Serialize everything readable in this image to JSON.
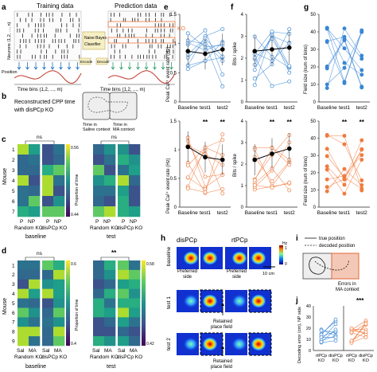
{
  "panels": {
    "a": {
      "letter": "a",
      "training_title": "Training data",
      "prediction_title": "Prediction data",
      "ylabel": "Neurons (1,2, ..., n)",
      "position_label": "Position",
      "xlabel_left": "Time bins (1,2, ..., m)",
      "xlabel_right": "Time bins (1,2, ..., m)",
      "classifier": "Naive Bayes Classifier",
      "encode": "Encode",
      "decode": "Decode",
      "ko": "KO"
    },
    "b": {
      "letter": "b",
      "title_line1": "Reconstructed CPP time",
      "title_line2": "with disPCp KO",
      "saline": "Time in Saline context",
      "ma": "Time in MA context"
    },
    "c": {
      "letter": "c",
      "ylabel": "Mouse",
      "mice": [
        "1",
        "2",
        "3",
        "4",
        "5",
        "6",
        "7"
      ],
      "ns_left": "ns",
      "ns_right": "ns",
      "xt1": "P",
      "xt2": "NP",
      "xt3": "P",
      "xt4": "NP",
      "group1": "Random KO",
      "group2": "disPCp KO",
      "cap_left": "baseline",
      "cap_right": "test",
      "colorbar_label": "Proportion of time",
      "cb_max": "0.56",
      "cb_min": "0.44"
    },
    "d": {
      "letter": "d",
      "ylabel": "Mouse",
      "mice": [
        "1",
        "2",
        "3",
        "4",
        "5",
        "6",
        "7",
        "8",
        "9"
      ],
      "ns_left": "ns",
      "sig_right": "**",
      "xt1": "Sal",
      "xt2": "MA",
      "xt3": "Sal",
      "xt4": "MA",
      "group1": "Random KO",
      "group2": "disPCp KO",
      "cap_left": "baseline",
      "cap_right": "test",
      "colorbar_label": "Proportion of time",
      "cb_left_max": "0.6",
      "cb_left_min": "0.4",
      "cb_right_max": "0.58",
      "cb_right_min": "0.42"
    },
    "e": {
      "letter": "e",
      "ylabel": "Peak Ca²⁺ event rate (Hz)",
      "xcats": [
        "Baseline",
        "test1",
        "test2"
      ],
      "top_ticks": [
        "1.5",
        "1",
        "0.5",
        "0"
      ],
      "bottom_ticks": [
        "1.5",
        "1",
        "0.5",
        "0"
      ],
      "sig1": "**",
      "sig2": "**"
    },
    "f": {
      "letter": "f",
      "ylabel": "Bits / spike",
      "xcats": [
        "Baseline",
        "test1",
        "test2"
      ],
      "top_ticks": [
        "4",
        "3",
        "2",
        "1",
        "0"
      ],
      "bottom_ticks": [
        "4",
        "3",
        "2",
        "1",
        "0"
      ],
      "sig1": "**",
      "sig2": "**"
    },
    "g": {
      "letter": "g",
      "ylabel": "Field size (num of bins)",
      "xcats": [
        "Baseline",
        "test1",
        "test2"
      ],
      "top_ticks": [
        "50",
        "40",
        "30",
        "20",
        "10",
        "0"
      ],
      "bottom_ticks": [
        "50",
        "40",
        "30",
        "20",
        "10",
        "0"
      ],
      "sig1": "**",
      "sig2": "**"
    },
    "h": {
      "letter": "h",
      "col1": "disPCp",
      "col2": "rtPCp",
      "row1": "baseline",
      "row2": "test 1",
      "row3": "test 2",
      "preferred1": "Preferred side",
      "preferred2": "Preferred side",
      "scalebar": "10 cm",
      "retained1": "Retained place field",
      "retained2": "Retained place field",
      "cb_hz": "Hz",
      "cb_top": "1",
      "cb_bottom": "0"
    },
    "i": {
      "letter": "i",
      "true_pos": "true position",
      "decoded_pos": "decoded position",
      "errors": "Errors in MA context"
    },
    "j": {
      "letter": "j",
      "ylabel": "Decoding error (cm), NP side",
      "ticks": [
        "40",
        "30",
        "20",
        "10",
        "0"
      ],
      "xcats": [
        "rtPCp KO",
        "disPCp KO"
      ],
      "sig": "***"
    }
  },
  "colors": {
    "blue": "#3a86d4",
    "orange": "#f07b3f",
    "black": "#111111",
    "grey": "#555555"
  }
}
